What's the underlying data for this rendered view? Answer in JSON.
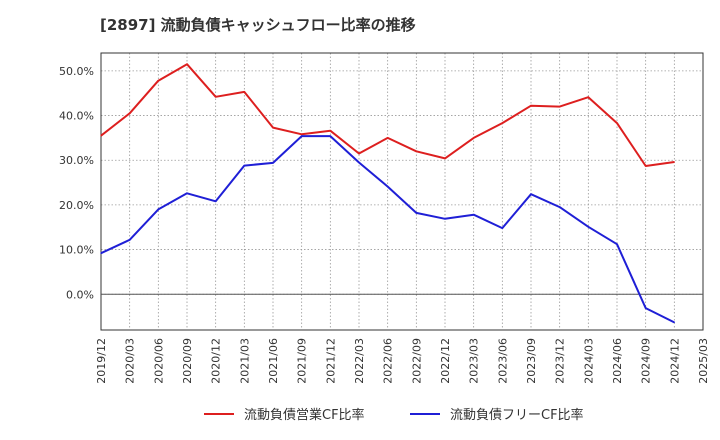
{
  "chart_data": {
    "type": "line",
    "title": "[2897]  流動負債キャッシュフロー比率の推移",
    "xlabel": "",
    "ylabel": "",
    "x": [
      "2019/12",
      "2020/03",
      "2020/06",
      "2020/09",
      "2020/12",
      "2021/03",
      "2021/06",
      "2021/09",
      "2021/12",
      "2022/03",
      "2022/06",
      "2022/09",
      "2022/12",
      "2023/03",
      "2023/06",
      "2023/09",
      "2023/12",
      "2024/03",
      "2024/06",
      "2024/09",
      "2024/12"
    ],
    "x_ticks": [
      "2019/12",
      "2020/03",
      "2020/06",
      "2020/09",
      "2020/12",
      "2021/03",
      "2021/06",
      "2021/09",
      "2021/12",
      "2022/03",
      "2022/06",
      "2022/09",
      "2022/12",
      "2023/03",
      "2023/06",
      "2023/09",
      "2023/12",
      "2024/03",
      "2024/06",
      "2024/09",
      "2024/12",
      "2025/03"
    ],
    "y_ticks": [
      "0.0%",
      "10.0%",
      "20.0%",
      "30.0%",
      "40.0%",
      "50.0%"
    ],
    "y_tick_values": [
      0,
      10,
      20,
      30,
      40,
      50
    ],
    "ylim": [
      -8,
      54
    ],
    "grid": true,
    "legend_position": "bottom",
    "series": [
      {
        "name": "流動負債営業CF比率",
        "color": "#dd1f1f",
        "values": [
          35.5,
          40.5,
          47.8,
          51.5,
          44.2,
          45.3,
          37.3,
          35.8,
          36.6,
          31.5,
          35.0,
          32.0,
          30.4,
          35.0,
          38.3,
          42.2,
          42.0,
          44.1,
          38.3,
          28.7,
          29.6
        ]
      },
      {
        "name": "流動負債フリーCF比率",
        "color": "#1f1fd6",
        "values": [
          9.2,
          12.2,
          19.0,
          22.6,
          20.8,
          28.8,
          29.4,
          35.4,
          35.4,
          29.5,
          24.1,
          18.2,
          16.9,
          17.8,
          14.8,
          22.4,
          19.5,
          15.1,
          11.2,
          -3.1,
          -6.3
        ]
      }
    ]
  }
}
